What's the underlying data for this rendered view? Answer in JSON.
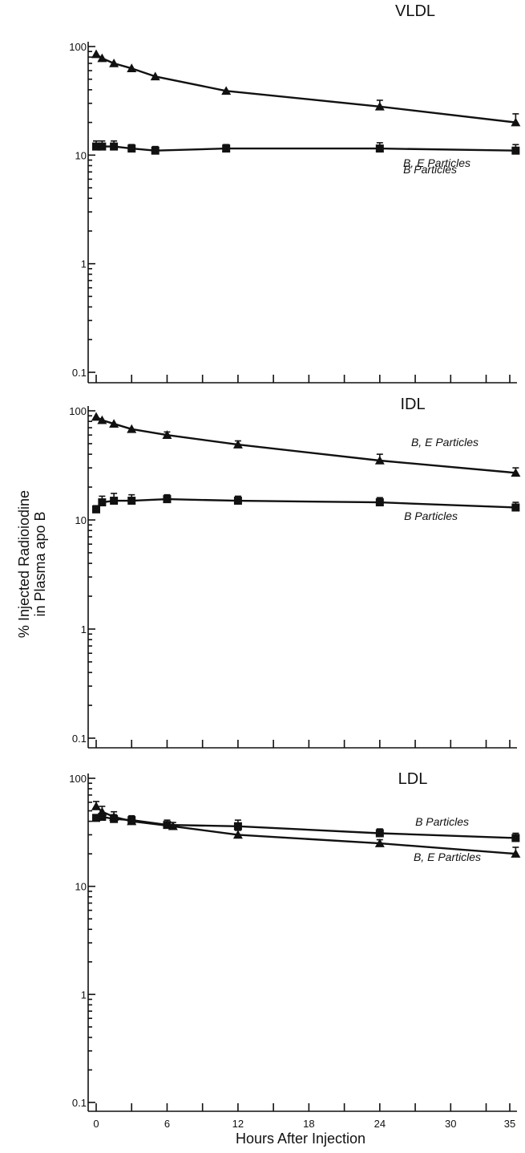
{
  "chart_data": [
    {
      "type": "line",
      "title": "VLDL",
      "yscale": "log",
      "ylim": [
        0.1,
        100
      ],
      "xlim": [
        -0.5,
        36
      ],
      "yticks": [
        "0.1",
        "1",
        "10",
        "100"
      ],
      "series": [
        {
          "name": "B, E Particles",
          "marker": "triangle",
          "x": [
            0,
            0.5,
            1.5,
            3,
            5,
            11,
            24,
            35.5
          ],
          "y": [
            85,
            78,
            70,
            63,
            53,
            39,
            28,
            20
          ],
          "err": [
            0,
            0,
            0,
            0,
            0,
            0,
            4,
            4
          ]
        },
        {
          "name": "B Particles",
          "marker": "square",
          "x": [
            0,
            0.5,
            1.5,
            3,
            5,
            11,
            24,
            35.5
          ],
          "y": [
            12,
            12,
            12,
            11.5,
            11,
            11.5,
            11.5,
            11
          ],
          "err": [
            1.5,
            1.5,
            1.5,
            1,
            1,
            1,
            1.5,
            1.5
          ]
        }
      ]
    },
    {
      "type": "line",
      "title": "IDL",
      "yscale": "log",
      "ylim": [
        0.1,
        100
      ],
      "xlim": [
        -0.5,
        36
      ],
      "yticks": [
        "0.1",
        "1",
        "10",
        "100"
      ],
      "series": [
        {
          "name": "B, E Particles",
          "marker": "triangle",
          "x": [
            0,
            0.5,
            1.5,
            3,
            6,
            12,
            24,
            35.5
          ],
          "y": [
            88,
            82,
            76,
            68,
            60,
            49,
            35,
            27
          ],
          "err": [
            0,
            0,
            0,
            0,
            4,
            4,
            5,
            3
          ]
        },
        {
          "name": "B Particles",
          "marker": "square",
          "x": [
            0,
            0.5,
            1.5,
            3,
            6,
            12,
            24,
            35.5
          ],
          "y": [
            12.5,
            14.5,
            15,
            15,
            15.5,
            15,
            14.5,
            13
          ],
          "err": [
            1,
            2,
            2.5,
            2,
            1.5,
            1.5,
            1.5,
            1.5
          ]
        }
      ]
    },
    {
      "type": "line",
      "title": "LDL",
      "yscale": "log",
      "ylim": [
        0.1,
        100
      ],
      "xlim": [
        -0.5,
        36
      ],
      "xticks": [
        "0",
        "6",
        "12",
        "18",
        "24",
        "30",
        "35"
      ],
      "yticks": [
        "0.1",
        "1",
        "10",
        "100"
      ],
      "xlabel": "Hours After Injection",
      "series": [
        {
          "name": "B Particles",
          "marker": "square",
          "x": [
            0,
            0.5,
            1.5,
            3,
            6,
            12,
            24,
            35.5
          ],
          "y": [
            43,
            44,
            42,
            41,
            37,
            36,
            31,
            28
          ],
          "err": [
            3,
            3,
            4,
            4,
            4,
            5,
            3,
            3
          ]
        },
        {
          "name": "B, E Particles",
          "marker": "triangle",
          "x": [
            0,
            0.5,
            1.5,
            3,
            6.5,
            12,
            24,
            35.5
          ],
          "y": [
            55,
            49,
            44,
            40,
            36,
            30,
            25,
            20
          ],
          "err": [
            6,
            6,
            5,
            3,
            3,
            3,
            2,
            3
          ]
        }
      ]
    }
  ],
  "shared_ylabel": [
    "% Injected Radioiodine",
    "in Plasma apo B"
  ]
}
